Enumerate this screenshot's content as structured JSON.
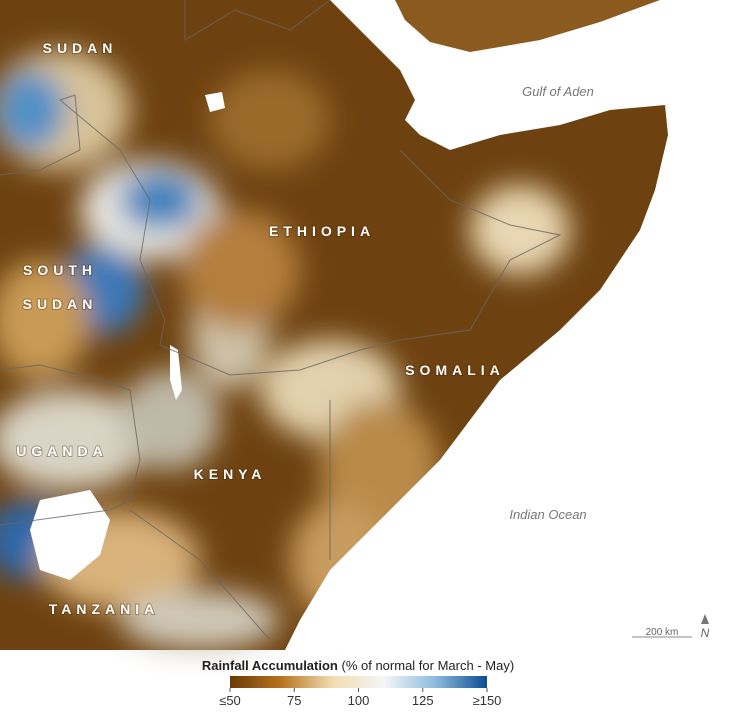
{
  "map": {
    "countries": {
      "sudan": "SUDAN",
      "ethiopia": "ETHIOPIA",
      "south_sudan": [
        "SOUTH",
        "SUDAN"
      ],
      "uganda": "UGANDA",
      "kenya": "KENYA",
      "somalia": "SOMALIA",
      "tanzania": "TANZANIA"
    },
    "waters": {
      "gulf": "Gulf of Aden",
      "ocean": "Indian Ocean"
    },
    "scale_bar": "200 km",
    "north_arrow": "N"
  },
  "legend": {
    "title": "Rainfall Accumulation",
    "subtitle": "(% of normal for March - May)",
    "lim": [
      50,
      150
    ],
    "ticks": [
      {
        "value": 50,
        "label": "≤50"
      },
      75,
      100,
      125,
      {
        "value": 150,
        "label": "≥150"
      }
    ],
    "colors": [
      "#6a3905",
      "#b8741f",
      "#f1ddb2",
      "#f4f6f7",
      "#8dbbdd",
      "#0a4c92"
    ]
  }
}
